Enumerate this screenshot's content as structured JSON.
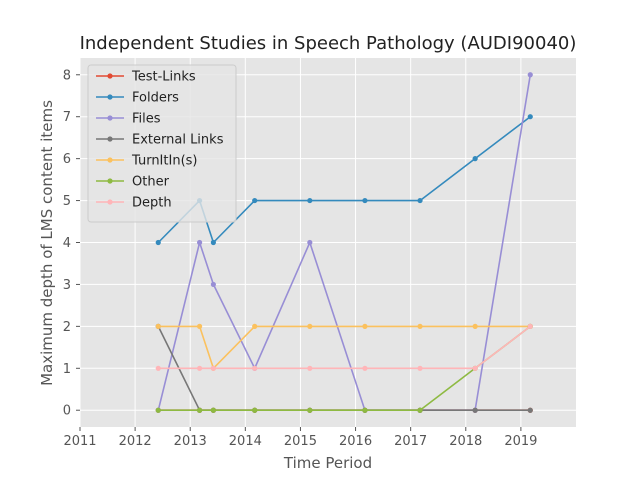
{
  "chart_data": {
    "type": "line",
    "title": "Independent Studies in Speech Pathology (AUDI90040)",
    "xlabel": "Time Period",
    "ylabel": "Maximum depth of LMS content items",
    "xlim": [
      2011,
      2020
    ],
    "ylim": [
      -0.4,
      8.4
    ],
    "xticks": [
      "2011",
      "2012",
      "2013",
      "2014",
      "2015",
      "2016",
      "2017",
      "2018",
      "2019"
    ],
    "yticks": [
      "0",
      "1",
      "2",
      "3",
      "4",
      "5",
      "6",
      "7",
      "8"
    ],
    "grid": true,
    "legend_position": "upper-left",
    "x": [
      2012.42,
      2013.17,
      2013.42,
      2014.17,
      2015.17,
      2016.17,
      2017.17,
      2018.17,
      2019.17
    ],
    "series": [
      {
        "name": "Test-Links",
        "color": "#E24A33",
        "values": [
          0,
          0,
          0,
          0,
          0,
          0,
          0,
          0,
          0
        ]
      },
      {
        "name": "Folders",
        "color": "#348ABD",
        "values": [
          4,
          5,
          4,
          5,
          5,
          5,
          5,
          6,
          7
        ]
      },
      {
        "name": "Files",
        "color": "#988ED5",
        "values": [
          0,
          4,
          3,
          1,
          4,
          0,
          0,
          0,
          8
        ]
      },
      {
        "name": "External Links",
        "color": "#777777",
        "values": [
          2,
          0,
          0,
          0,
          0,
          0,
          0,
          0,
          0
        ]
      },
      {
        "name": "TurnItIn(s)",
        "color": "#FBC15E",
        "values": [
          2,
          2,
          1,
          2,
          2,
          2,
          2,
          2,
          2
        ]
      },
      {
        "name": "Other",
        "color": "#8EBA42",
        "values": [
          0,
          0,
          0,
          0,
          0,
          0,
          0,
          1,
          2
        ]
      },
      {
        "name": "Depth",
        "color": "#FFB5B8",
        "values": [
          1,
          1,
          1,
          1,
          1,
          1,
          1,
          1,
          2
        ]
      }
    ]
  }
}
